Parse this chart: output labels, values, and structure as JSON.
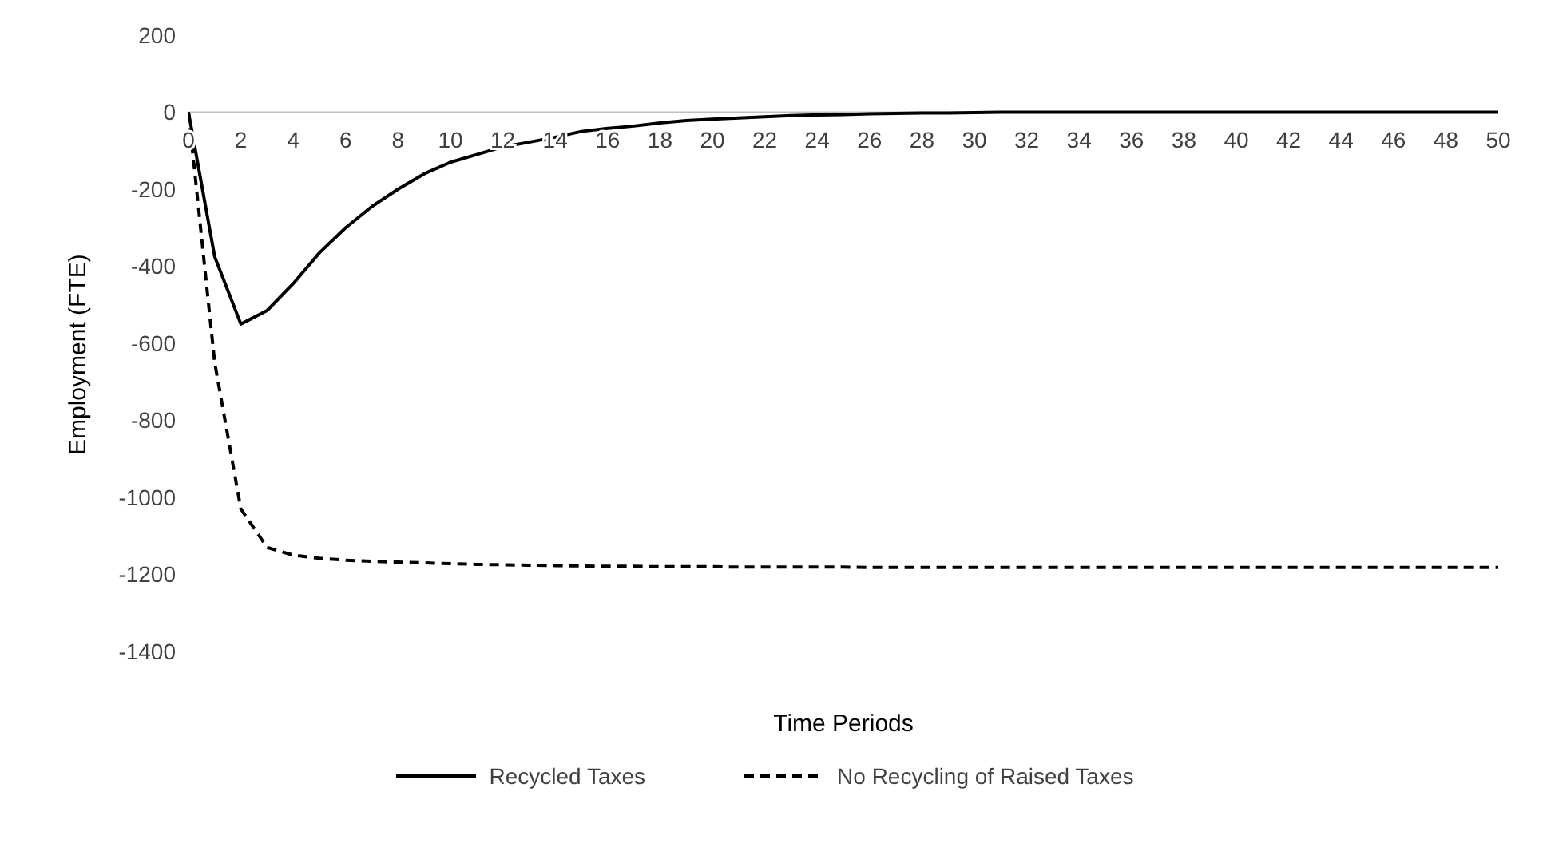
{
  "chart_data": {
    "type": "line",
    "xlabel": "Time Periods",
    "ylabel": "Employment (FTE)",
    "x": [
      0,
      1,
      2,
      3,
      4,
      5,
      6,
      7,
      8,
      9,
      10,
      11,
      12,
      13,
      14,
      15,
      16,
      17,
      18,
      19,
      20,
      21,
      22,
      23,
      24,
      25,
      26,
      27,
      28,
      29,
      30,
      31,
      32,
      33,
      34,
      35,
      36,
      37,
      38,
      39,
      40,
      41,
      42,
      43,
      44,
      45,
      46,
      47,
      48,
      49,
      50
    ],
    "xlim": [
      0,
      50
    ],
    "xticks": [
      0,
      2,
      4,
      6,
      8,
      10,
      12,
      14,
      16,
      18,
      20,
      22,
      24,
      26,
      28,
      30,
      32,
      34,
      36,
      38,
      40,
      42,
      44,
      46,
      48,
      50
    ],
    "series": [
      {
        "name": "Recycled Taxes",
        "color": "#000000",
        "line_style": "solid",
        "values": [
          0,
          -375,
          -550,
          -515,
          -445,
          -365,
          -300,
          -245,
          -200,
          -160,
          -130,
          -110,
          -90,
          -78,
          -65,
          -50,
          -42,
          -36,
          -28,
          -22,
          -18,
          -15,
          -12,
          -9,
          -7,
          -6,
          -4,
          -3,
          -2,
          -2,
          -1,
          0,
          0,
          0,
          0,
          0,
          0,
          0,
          0,
          0,
          0,
          0,
          0,
          0,
          0,
          0,
          0,
          0,
          0,
          0,
          0
        ]
      },
      {
        "name": "No Recycling of Raised Taxes",
        "color": "#000000",
        "line_style": "dashed",
        "values": [
          0,
          -650,
          -1030,
          -1130,
          -1150,
          -1158,
          -1163,
          -1166,
          -1168,
          -1170,
          -1172,
          -1174,
          -1175,
          -1176,
          -1177,
          -1178,
          -1179,
          -1179,
          -1180,
          -1180,
          -1180,
          -1181,
          -1181,
          -1181,
          -1181,
          -1181,
          -1182,
          -1182,
          -1182,
          -1182,
          -1182,
          -1182,
          -1182,
          -1182,
          -1182,
          -1182,
          -1182,
          -1182,
          -1182,
          -1182,
          -1182,
          -1182,
          -1182,
          -1182,
          -1182,
          -1182,
          -1182,
          -1182,
          -1182,
          -1182,
          -1182
        ]
      }
    ],
    "ylim": [
      -1400,
      200
    ],
    "yticks": [
      -1400,
      -1200,
      -1000,
      -800,
      -600,
      -400,
      -200,
      0,
      200
    ],
    "grid": false,
    "legend": "bottom",
    "marker": "none"
  }
}
